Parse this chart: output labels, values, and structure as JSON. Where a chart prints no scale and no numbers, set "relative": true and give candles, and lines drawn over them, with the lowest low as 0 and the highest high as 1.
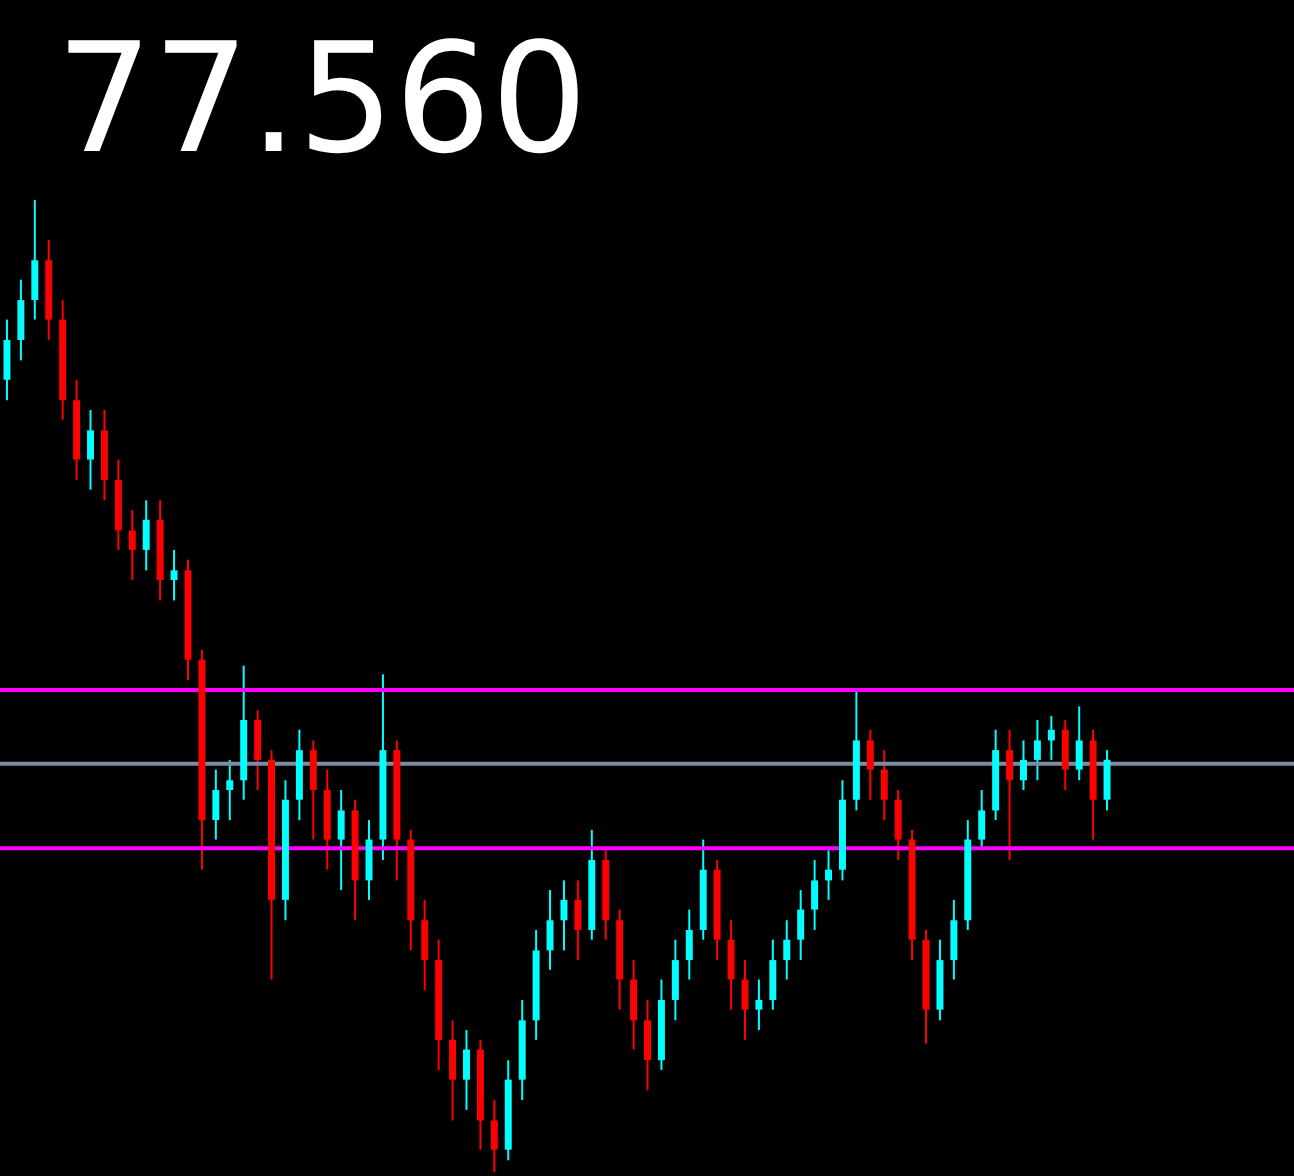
{
  "chart_data": {
    "type": "candlestick",
    "title": "77.560",
    "relative": true,
    "categories": [
      null,
      null,
      null,
      null,
      null,
      null,
      null,
      null,
      null,
      null,
      null,
      null,
      null,
      null,
      null,
      null,
      null,
      null,
      null,
      null,
      null,
      null,
      null,
      null,
      null,
      null,
      null,
      null,
      null,
      null,
      null,
      null,
      null,
      null,
      null,
      null,
      null,
      null,
      null,
      null,
      null,
      null,
      null,
      null,
      null,
      null,
      null,
      null,
      null,
      null,
      null,
      null,
      null,
      null,
      null,
      null,
      null,
      null,
      null,
      null,
      null,
      null,
      null,
      null,
      null,
      null,
      null,
      null,
      null,
      null,
      null,
      null,
      null,
      null,
      null,
      null,
      null,
      null,
      null,
      null
    ],
    "ohlc": [
      [
        0.815,
        0.877,
        0.794,
        0.856
      ],
      [
        0.856,
        0.918,
        0.835,
        0.897
      ],
      [
        0.897,
        1.0,
        0.877,
        0.938
      ],
      [
        0.938,
        0.959,
        0.856,
        0.877
      ],
      [
        0.877,
        0.897,
        0.774,
        0.794
      ],
      [
        0.794,
        0.815,
        0.712,
        0.733
      ],
      [
        0.733,
        0.784,
        0.702,
        0.763
      ],
      [
        0.763,
        0.784,
        0.691,
        0.712
      ],
      [
        0.712,
        0.733,
        0.64,
        0.66
      ],
      [
        0.66,
        0.681,
        0.609,
        0.64
      ],
      [
        0.64,
        0.691,
        0.619,
        0.671
      ],
      [
        0.671,
        0.691,
        0.588,
        0.609
      ],
      [
        0.609,
        0.64,
        0.588,
        0.619
      ],
      [
        0.619,
        0.63,
        0.506,
        0.527
      ],
      [
        0.527,
        0.537,
        0.311,
        0.362
      ],
      [
        0.362,
        0.414,
        0.342,
        0.393
      ],
      [
        0.393,
        0.424,
        0.362,
        0.403
      ],
      [
        0.403,
        0.521,
        0.383,
        0.465
      ],
      [
        0.465,
        0.475,
        0.393,
        0.424
      ],
      [
        0.424,
        0.434,
        0.198,
        0.28
      ],
      [
        0.28,
        0.403,
        0.259,
        0.383
      ],
      [
        0.383,
        0.455,
        0.362,
        0.434
      ],
      [
        0.434,
        0.444,
        0.342,
        0.393
      ],
      [
        0.393,
        0.414,
        0.311,
        0.342
      ],
      [
        0.342,
        0.393,
        0.29,
        0.372
      ],
      [
        0.372,
        0.383,
        0.259,
        0.3
      ],
      [
        0.3,
        0.362,
        0.28,
        0.342
      ],
      [
        0.342,
        0.512,
        0.321,
        0.434
      ],
      [
        0.434,
        0.444,
        0.3,
        0.342
      ],
      [
        0.342,
        0.352,
        0.228,
        0.259
      ],
      [
        0.259,
        0.28,
        0.187,
        0.218
      ],
      [
        0.218,
        0.239,
        0.105,
        0.136
      ],
      [
        0.136,
        0.156,
        0.053,
        0.095
      ],
      [
        0.095,
        0.146,
        0.064,
        0.126
      ],
      [
        0.126,
        0.136,
        0.023,
        0.053
      ],
      [
        0.053,
        0.074,
        0,
        0.023
      ],
      [
        0.023,
        0.115,
        0.012,
        0.095
      ],
      [
        0.095,
        0.177,
        0.074,
        0.156
      ],
      [
        0.156,
        0.249,
        0.136,
        0.228
      ],
      [
        0.228,
        0.29,
        0.208,
        0.259
      ],
      [
        0.259,
        0.3,
        0.228,
        0.28
      ],
      [
        0.28,
        0.3,
        0.218,
        0.249
      ],
      [
        0.249,
        0.352,
        0.239,
        0.321
      ],
      [
        0.321,
        0.331,
        0.239,
        0.259
      ],
      [
        0.259,
        0.27,
        0.167,
        0.198
      ],
      [
        0.198,
        0.218,
        0.126,
        0.156
      ],
      [
        0.156,
        0.177,
        0.084,
        0.115
      ],
      [
        0.115,
        0.198,
        0.105,
        0.177
      ],
      [
        0.177,
        0.239,
        0.156,
        0.218
      ],
      [
        0.218,
        0.27,
        0.198,
        0.249
      ],
      [
        0.249,
        0.342,
        0.239,
        0.311
      ],
      [
        0.311,
        0.321,
        0.218,
        0.239
      ],
      [
        0.239,
        0.259,
        0.167,
        0.198
      ],
      [
        0.198,
        0.218,
        0.136,
        0.167
      ],
      [
        0.167,
        0.198,
        0.146,
        0.177
      ],
      [
        0.177,
        0.239,
        0.167,
        0.218
      ],
      [
        0.218,
        0.259,
        0.198,
        0.239
      ],
      [
        0.239,
        0.29,
        0.218,
        0.27
      ],
      [
        0.27,
        0.321,
        0.249,
        0.3
      ],
      [
        0.3,
        0.331,
        0.28,
        0.311
      ],
      [
        0.311,
        0.403,
        0.3,
        0.383
      ],
      [
        0.383,
        0.496,
        0.372,
        0.444
      ],
      [
        0.444,
        0.455,
        0.383,
        0.414
      ],
      [
        0.414,
        0.434,
        0.362,
        0.383
      ],
      [
        0.383,
        0.393,
        0.321,
        0.342
      ],
      [
        0.342,
        0.352,
        0.218,
        0.239
      ],
      [
        0.239,
        0.249,
        0.132,
        0.167
      ],
      [
        0.167,
        0.239,
        0.156,
        0.218
      ],
      [
        0.218,
        0.28,
        0.198,
        0.259
      ],
      [
        0.259,
        0.362,
        0.249,
        0.342
      ],
      [
        0.342,
        0.393,
        0.331,
        0.372
      ],
      [
        0.372,
        0.455,
        0.362,
        0.434
      ],
      [
        0.434,
        0.455,
        0.321,
        0.403
      ],
      [
        0.403,
        0.444,
        0.393,
        0.424
      ],
      [
        0.424,
        0.465,
        0.403,
        0.444
      ],
      [
        0.444,
        0.469,
        0.424,
        0.455
      ],
      [
        0.455,
        0.465,
        0.393,
        0.414
      ],
      [
        0.414,
        0.479,
        0.403,
        0.444
      ],
      [
        0.444,
        0.455,
        0.342,
        0.383
      ],
      [
        0.383,
        0.434,
        0.372,
        0.424
      ]
    ],
    "colors": [
      "#00ffff",
      "#00ffff",
      "#00ffff",
      "#ff0000",
      "#ff0000",
      "#ff0000",
      "#00ffff",
      "#ff0000",
      "#ff0000",
      "#ff0000",
      "#00ffff",
      "#ff0000",
      "#00ffff",
      "#ff0000",
      "#ff0000",
      "#00ffff",
      "#00ffff",
      "#00ffff",
      "#ff0000",
      "#ff0000",
      "#00ffff",
      "#00ffff",
      "#ff0000",
      "#ff0000",
      "#00ffff",
      "#ff0000",
      "#00ffff",
      "#00ffff",
      "#ff0000",
      "#ff0000",
      "#ff0000",
      "#ff0000",
      "#ff0000",
      "#00ffff",
      "#ff0000",
      "#ff0000",
      "#00ffff",
      "#00ffff",
      "#00ffff",
      "#00ffff",
      "#00ffff",
      "#ff0000",
      "#00ffff",
      "#ff0000",
      "#ff0000",
      "#ff0000",
      "#ff0000",
      "#00ffff",
      "#00ffff",
      "#00ffff",
      "#00ffff",
      "#ff0000",
      "#ff0000",
      "#ff0000",
      "#00ffff",
      "#00ffff",
      "#00ffff",
      "#00ffff",
      "#00ffff",
      "#00ffff",
      "#00ffff",
      "#00ffff",
      "#ff0000",
      "#ff0000",
      "#ff0000",
      "#ff0000",
      "#ff0000",
      "#00ffff",
      "#00ffff",
      "#00ffff",
      "#00ffff",
      "#00ffff",
      "#ff0000",
      "#00ffff",
      "#00ffff",
      "#00ffff",
      "#ff0000",
      "#00ffff",
      "#ff0000",
      "#00ffff"
    ],
    "ref_lines": [
      {
        "axis": "y",
        "value": 0.42,
        "color": "#7a8ca6"
      },
      {
        "axis": "y",
        "value": 0.496,
        "color": "#ff00ff"
      },
      {
        "axis": "y",
        "value": 0.333,
        "color": "#ff00ff"
      }
    ]
  }
}
